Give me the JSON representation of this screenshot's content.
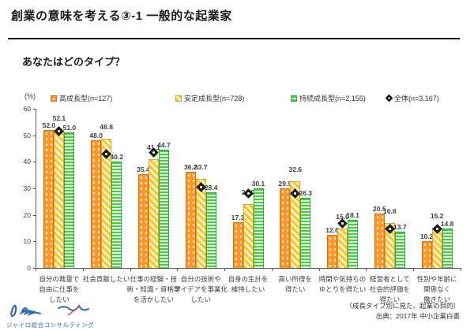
{
  "header": {
    "title": "創業の意味を考える③-1  一般的な起業家"
  },
  "subtitle": "あなたはどのタイプ？",
  "footer": {
    "note": "（成長タイプ別に見た、起業の目的）",
    "source": "出典：2017年 中小企業白書"
  },
  "logo": {
    "company": "ジャイロ総合コンサルティング"
  },
  "colors": {
    "bar_high_fill": "#FF9728",
    "bar_high_border": "#E36C09",
    "bar_stable_stripe": "#FFC32B",
    "bar_stable_bg": "#FFF6D8",
    "bar_stable_border": "#E3A21D",
    "bar_sustain_stripe": "#3ED33E",
    "bar_sustain_bg": "#EFFFEA",
    "bar_sustain_border": "#28B428",
    "marker": "#1A1A1A",
    "text_dark": "#3F3F3F",
    "logo_blue": "#2E6DB4",
    "logo_red": "#E03A3A"
  },
  "chart_data": {
    "type": "bar",
    "unit_label": "(%)",
    "ylim": [
      0,
      60
    ],
    "yticks": [
      0,
      10,
      20,
      30,
      40,
      50,
      60
    ],
    "grid": false,
    "legend_position": "top",
    "categories": [
      {
        "label": "自分の裁量で自由に仕事をしたい",
        "lines": [
          "自分の裁量で",
          "自由に仕事を",
          "したい"
        ]
      },
      {
        "label": "社会貢献したい",
        "lines": [
          "社会貢献したい"
        ]
      },
      {
        "label": "仕事の経験・技術・知識・資格等を活かしたい",
        "lines": [
          "仕事の経験・技",
          "術・知識・資格等",
          "を活かしたい"
        ]
      },
      {
        "label": "自分の技術やアイデアを事業化したい",
        "lines": [
          "自分の技術や",
          "アイデアを事業化",
          "したい"
        ]
      },
      {
        "label": "自身の生計を維持したい",
        "lines": [
          "自身の生計を",
          "維持したい"
        ]
      },
      {
        "label": "高い所得を得たい",
        "lines": [
          "高い所得を",
          "得たい"
        ]
      },
      {
        "label": "時間や気持ちのゆとりを得たい",
        "lines": [
          "時間や気持ちの",
          "ゆとりを得たい"
        ]
      },
      {
        "label": "経営者として社会的評価を得たい",
        "lines": [
          "経営者として",
          "社会的評価を",
          "得たい"
        ]
      },
      {
        "label": "性別や年齢に関係なく働きたい",
        "lines": [
          "性別や年齢に",
          "関係なく",
          "働きたい"
        ]
      }
    ],
    "series": [
      {
        "name": "高成長型(n=127)",
        "style": "orange-dots",
        "values": [
          52.0,
          48.0,
          35.4,
          36.2,
          17.3,
          29.9,
          12.6,
          20.5,
          10.2
        ]
      },
      {
        "name": "安定成長型(n=728)",
        "style": "yellow-diagonal",
        "values": [
          52.1,
          48.8,
          41.1,
          33.7,
          24.0,
          32.6,
          15.0,
          16.8,
          15.2
        ]
      },
      {
        "name": "持続成長型(n=2,155)",
        "style": "green-horizontal",
        "values": [
          51.0,
          40.2,
          44.7,
          28.4,
          30.1,
          26.3,
          18.1,
          13.7,
          14.8
        ]
      },
      {
        "name": "全体(n=3,167)",
        "style": "diamond-marker",
        "labels_shown": false,
        "estimated": true,
        "values": [
          51.4,
          43.0,
          43.4,
          30.3,
          28.1,
          28.0,
          16.9,
          14.7,
          14.7
        ]
      }
    ]
  }
}
